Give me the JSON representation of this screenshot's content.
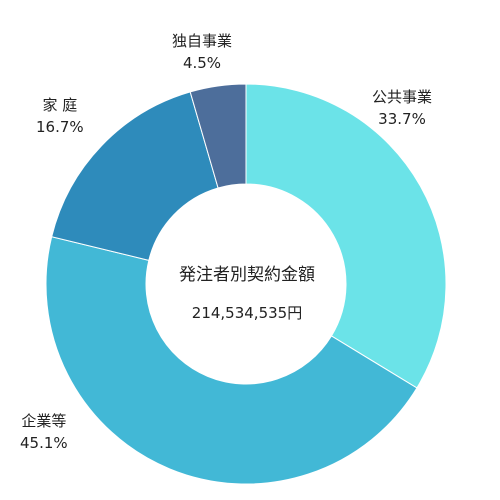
{
  "chart_data": {
    "type": "pie",
    "style": "donut",
    "start": "top, clockwise",
    "center_title": "発注者別契約金額",
    "center_value": "214,534,535円",
    "slices": [
      {
        "label": "公共事業",
        "pct_label": "33.7%",
        "value": 33.7,
        "color": "#6be3e8"
      },
      {
        "label": "企業等",
        "pct_label": "45.1%",
        "value": 45.1,
        "color": "#42b8d6"
      },
      {
        "label": "家 庭",
        "pct_label": "16.7%",
        "value": 16.7,
        "color": "#2e8bbb"
      },
      {
        "label": "独自事業",
        "pct_label": "4.5%",
        "value": 4.5,
        "color": "#4d6e9b"
      }
    ]
  }
}
